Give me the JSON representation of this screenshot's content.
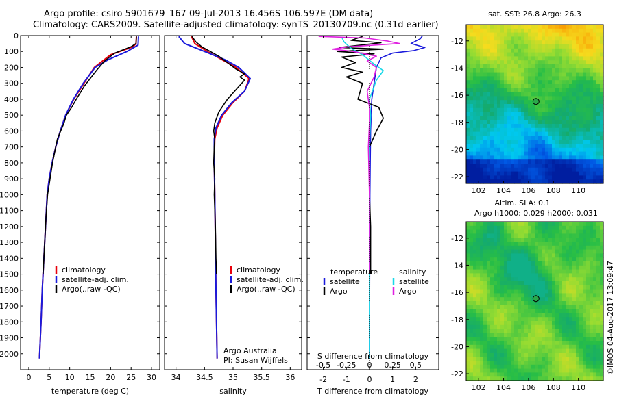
{
  "header": {
    "line1": "Argo profile: csiro 5901679_167 09-Jul-2013 16.456S 106.597E (DM data)",
    "line2": "Climatology: CARS2009. Satellite-adjusted climatology: synTS_20130709.nc (0.31d earlier)"
  },
  "footer_stamp": "©IMOS 04-Aug-2017 13:09:47",
  "colors": {
    "red": "#e8000b",
    "blue": "#1a1adc",
    "black": "#000000",
    "cyan": "#18d8e8",
    "magenta": "#e020e0"
  },
  "chart_data": [
    {
      "type": "line",
      "id": "temperature",
      "xlabel": "temperature (deg C)",
      "ylabel": "",
      "xlim": [
        -2,
        32
      ],
      "ylim": [
        2100,
        0
      ],
      "xticks": [
        0,
        5,
        10,
        15,
        20,
        25,
        30
      ],
      "yticks": [
        0,
        100,
        200,
        300,
        400,
        500,
        600,
        700,
        800,
        900,
        1000,
        1100,
        1200,
        1300,
        1400,
        1500,
        1600,
        1700,
        1800,
        1900,
        2000
      ],
      "legend": [
        "climatology",
        "satellite-adj. clim.",
        "Argo(..raw -QC)"
      ],
      "series": [
        {
          "name": "climatology",
          "color": "red",
          "points": [
            [
              26.3,
              5
            ],
            [
              26.2,
              50
            ],
            [
              25.5,
              70
            ],
            [
              20,
              120
            ],
            [
              16,
              200
            ],
            [
              13.5,
              300
            ],
            [
              11,
              400
            ],
            [
              9,
              500
            ],
            [
              7.7,
              600
            ],
            [
              6.6,
              700
            ],
            [
              5.7,
              800
            ],
            [
              5,
              900
            ],
            [
              4.5,
              1000
            ],
            [
              4.1,
              1200
            ],
            [
              3.7,
              1400
            ],
            [
              3.3,
              1600
            ],
            [
              3.0,
              1800
            ],
            [
              2.6,
              2030
            ]
          ]
        },
        {
          "name": "satellite-adj. clim.",
          "color": "blue",
          "points": [
            [
              26.8,
              5
            ],
            [
              26.7,
              60
            ],
            [
              24,
              100
            ],
            [
              19.5,
              150
            ],
            [
              16.2,
              200
            ],
            [
              13.3,
              300
            ],
            [
              10.9,
              400
            ],
            [
              9,
              500
            ],
            [
              7.7,
              600
            ],
            [
              6.6,
              700
            ],
            [
              5.7,
              800
            ],
            [
              5,
              900
            ],
            [
              4.5,
              1000
            ],
            [
              4.1,
              1200
            ],
            [
              3.7,
              1400
            ],
            [
              3.3,
              1600
            ],
            [
              3.0,
              1800
            ],
            [
              2.6,
              2030
            ]
          ]
        },
        {
          "name": "Argo(..raw -QC)",
          "color": "black",
          "points": [
            [
              26.3,
              5
            ],
            [
              26.2,
              50
            ],
            [
              25,
              70
            ],
            [
              21,
              110
            ],
            [
              18.5,
              160
            ],
            [
              16.5,
              220
            ],
            [
              15,
              270
            ],
            [
              13.5,
              320
            ],
            [
              12.8,
              350
            ],
            [
              11.6,
              400
            ],
            [
              10.5,
              450
            ],
            [
              9.2,
              500
            ],
            [
              8.6,
              550
            ],
            [
              7.8,
              600
            ],
            [
              7,
              650
            ],
            [
              6.6,
              700
            ],
            [
              5.8,
              800
            ],
            [
              5.2,
              900
            ],
            [
              4.6,
              1000
            ],
            [
              4.2,
              1150
            ],
            [
              3.8,
              1350
            ],
            [
              3.5,
              1500
            ]
          ]
        }
      ]
    },
    {
      "type": "line",
      "id": "salinity",
      "xlabel": "salinity",
      "xlim": [
        33.8,
        36.2
      ],
      "ylim": [
        2100,
        0
      ],
      "xticks": [
        34,
        34.5,
        35,
        35.5,
        36
      ],
      "yticks": [
        0,
        100,
        200,
        300,
        400,
        500,
        600,
        700,
        800,
        900,
        1000,
        1100,
        1200,
        1300,
        1400,
        1500,
        1600,
        1700,
        1800,
        1900,
        2000
      ],
      "legend": [
        "climatology",
        "satellite-adj. clim.",
        "Argo(..raw -QC)"
      ],
      "annotation": [
        "Argo Australia",
        "PI: Susan Wijffels"
      ],
      "series": [
        {
          "name": "climatology",
          "color": "red",
          "points": [
            [
              34.27,
              5
            ],
            [
              34.33,
              50
            ],
            [
              34.55,
              100
            ],
            [
              34.8,
              150
            ],
            [
              35.05,
              200
            ],
            [
              35.28,
              270
            ],
            [
              35.2,
              350
            ],
            [
              35.0,
              420
            ],
            [
              34.82,
              500
            ],
            [
              34.72,
              580
            ],
            [
              34.68,
              650
            ],
            [
              34.67,
              800
            ],
            [
              34.68,
              1000
            ],
            [
              34.69,
              1300
            ],
            [
              34.7,
              1600
            ],
            [
              34.71,
              1800
            ],
            [
              34.72,
              2030
            ]
          ]
        },
        {
          "name": "satellite-adj. clim.",
          "color": "blue",
          "points": [
            [
              34.05,
              5
            ],
            [
              34.15,
              50
            ],
            [
              34.5,
              100
            ],
            [
              34.85,
              150
            ],
            [
              35.1,
              200
            ],
            [
              35.3,
              270
            ],
            [
              35.2,
              350
            ],
            [
              34.98,
              420
            ],
            [
              34.8,
              500
            ],
            [
              34.7,
              580
            ],
            [
              34.67,
              650
            ],
            [
              34.67,
              800
            ],
            [
              34.68,
              1000
            ],
            [
              34.69,
              1300
            ],
            [
              34.7,
              1600
            ],
            [
              34.71,
              1800
            ],
            [
              34.72,
              2030
            ]
          ]
        },
        {
          "name": "Argo(..raw -QC)",
          "color": "black",
          "points": [
            [
              34.28,
              5
            ],
            [
              34.35,
              40
            ],
            [
              34.45,
              70
            ],
            [
              34.6,
              100
            ],
            [
              34.75,
              130
            ],
            [
              34.9,
              170
            ],
            [
              35.05,
              210
            ],
            [
              35.2,
              240
            ],
            [
              35.12,
              260
            ],
            [
              35.2,
              280
            ],
            [
              35.1,
              320
            ],
            [
              34.9,
              400
            ],
            [
              34.75,
              480
            ],
            [
              34.68,
              550
            ],
            [
              34.66,
              600
            ],
            [
              34.68,
              650
            ],
            [
              34.67,
              700
            ],
            [
              34.66,
              800
            ],
            [
              34.68,
              900
            ],
            [
              34.67,
              1000
            ],
            [
              34.69,
              1200
            ],
            [
              34.7,
              1400
            ],
            [
              34.71,
              1500
            ]
          ]
        }
      ]
    },
    {
      "type": "line",
      "id": "difference",
      "xlabel": "T difference from climatology",
      "xlabel_top": "S difference from climatology",
      "xlim": [
        -2.7,
        3.0
      ],
      "ylim": [
        2100,
        0
      ],
      "xticks": [
        -2,
        -1,
        0,
        1,
        2
      ],
      "xticks_s": [
        "-0.5",
        "-0.25",
        "0",
        "0.25",
        "0.5"
      ],
      "xticks_s_pos": [
        -2,
        -1,
        0,
        1,
        2
      ],
      "yticks": [
        0,
        100,
        200,
        300,
        400,
        500,
        600,
        700,
        800,
        900,
        1000,
        1100,
        1200,
        1300,
        1400,
        1500,
        1600,
        1700,
        1800,
        1900,
        2000
      ],
      "legend_left_title": "temperature",
      "legend_right_title": "salinity",
      "legend_left": [
        "satellite",
        "Argo"
      ],
      "legend_right": [
        "satellite",
        "Argo"
      ],
      "series": [
        {
          "name": "T satellite",
          "color": "blue",
          "points": [
            [
              2.3,
              0
            ],
            [
              2.2,
              20
            ],
            [
              1.8,
              50
            ],
            [
              2.4,
              75
            ],
            [
              1.9,
              95
            ],
            [
              1.0,
              110
            ],
            [
              0.5,
              140
            ],
            [
              0.3,
              200
            ],
            [
              0.2,
              300
            ],
            [
              0.1,
              400
            ],
            [
              0.05,
              600
            ],
            [
              0.02,
              1000
            ],
            [
              0,
              2030
            ]
          ]
        },
        {
          "name": "T Argo",
          "color": "black",
          "points": [
            [
              -0.3,
              5
            ],
            [
              -0.8,
              30
            ],
            [
              0.5,
              45
            ],
            [
              -1.3,
              75
            ],
            [
              0.6,
              85
            ],
            [
              -1.4,
              100
            ],
            [
              0.2,
              115
            ],
            [
              -1.2,
              135
            ],
            [
              -0.6,
              170
            ],
            [
              -1.2,
              200
            ],
            [
              -0.3,
              230
            ],
            [
              -1.0,
              260
            ],
            [
              -0.3,
              300
            ],
            [
              -0.5,
              400
            ],
            [
              0.4,
              450
            ],
            [
              0.6,
              520
            ],
            [
              0.3,
              600
            ],
            [
              0.0,
              700
            ],
            [
              0.0,
              1000
            ],
            [
              0.05,
              1200
            ],
            [
              0.05,
              1500
            ]
          ]
        },
        {
          "name": "S satellite",
          "color": "cyan",
          "points": [
            [
              -1.2,
              10
            ],
            [
              -1.1,
              40
            ],
            [
              -0.8,
              80
            ],
            [
              -0.3,
              120
            ],
            [
              0.2,
              180
            ],
            [
              0.6,
              220
            ],
            [
              0.3,
              280
            ],
            [
              0.0,
              400
            ],
            [
              0.05,
              500
            ],
            [
              0.0,
              700
            ],
            [
              0.0,
              1000
            ],
            [
              0.0,
              1500
            ],
            [
              0.0,
              2030
            ]
          ]
        },
        {
          "name": "S Argo",
          "color": "magenta",
          "points": [
            [
              -2.2,
              5
            ],
            [
              -0.2,
              15
            ],
            [
              0.8,
              35
            ],
            [
              1.3,
              50
            ],
            [
              0.2,
              60
            ],
            [
              -0.9,
              70
            ],
            [
              -1.6,
              85
            ],
            [
              -0.7,
              100
            ],
            [
              0.3,
              130
            ],
            [
              -0.1,
              160
            ],
            [
              0.3,
              200
            ],
            [
              0.2,
              260
            ],
            [
              -0.1,
              350
            ],
            [
              0.0,
              450
            ],
            [
              0.0,
              550
            ],
            [
              -0.05,
              700
            ],
            [
              0.0,
              1000
            ],
            [
              0.0,
              1500
            ]
          ]
        }
      ]
    },
    {
      "type": "heatmap",
      "id": "sst_map",
      "title": "sat. SST: 26.8  Argo: 26.3",
      "xlim": [
        101,
        112
      ],
      "ylim": [
        -22.5,
        -10.8
      ],
      "xticks": [
        102,
        104,
        106,
        108,
        110
      ],
      "yticks": [
        -12,
        -14,
        -16,
        -18,
        -20,
        -22
      ],
      "marker": [
        106.6,
        -16.46
      ]
    },
    {
      "type": "heatmap",
      "id": "sla_map",
      "title": "Altim. SLA: 0.1",
      "subtitle": "Argo h1000: 0.029 h2000: 0.031",
      "xlim": [
        101,
        112
      ],
      "ylim": [
        -22.5,
        -10.8
      ],
      "xticks": [
        102,
        104,
        106,
        108,
        110
      ],
      "yticks": [
        -12,
        -14,
        -16,
        -18,
        -20,
        -22
      ],
      "marker": [
        106.6,
        -16.46
      ]
    }
  ]
}
